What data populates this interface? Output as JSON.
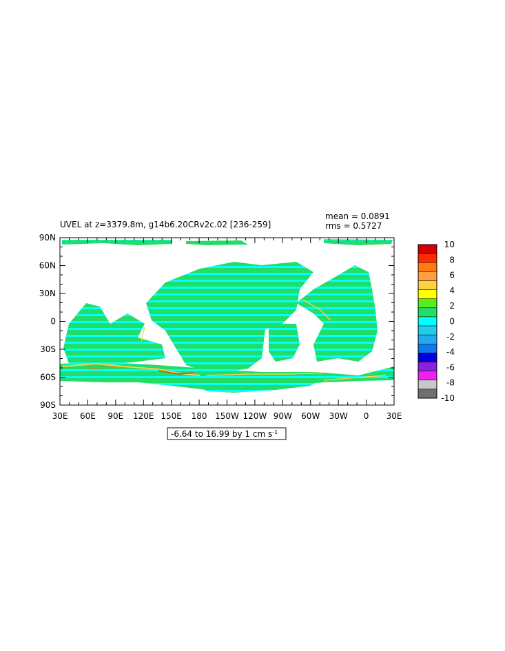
{
  "chart_data": {
    "type": "heatmap",
    "title": "UVEL at z=3379.8m, g14b6.20CRv2c.02  [236-259]",
    "stats": {
      "mean": "mean = 0.0891",
      "rms": "rms = 0.5727"
    },
    "x_ticks": [
      "30E",
      "60E",
      "90E",
      "120E",
      "150E",
      "180",
      "150W",
      "120W",
      "90W",
      "60W",
      "30W",
      "0",
      "30E"
    ],
    "y_ticks": [
      "90N",
      "60N",
      "30N",
      "0",
      "30S",
      "60S",
      "90S"
    ],
    "contour_info": "-6.64 to 16.99 by 1 cm s",
    "contour_unit_exp": "-1",
    "colorbar": {
      "levels": [
        "10",
        "8",
        "6",
        "4",
        "2",
        "0",
        "-2",
        "-4",
        "-6",
        "-8",
        "-10"
      ],
      "colors": [
        "#d40000",
        "#ff2a00",
        "#ff7a10",
        "#ffa040",
        "#ffd040",
        "#ffff00",
        "#55ee22",
        "#22dd66",
        "#00ffff",
        "#22ccee",
        "#22aaee",
        "#1177ee",
        "#0000e0",
        "#8a22dd",
        "#ee22ee",
        "#c8c8c8",
        "#707070"
      ]
    },
    "field_colors": {
      "dominant": "#22dd66",
      "secondary": "#00ffff",
      "positive_band": "#ffd040",
      "strong_positive": "#ff2a00"
    }
  }
}
